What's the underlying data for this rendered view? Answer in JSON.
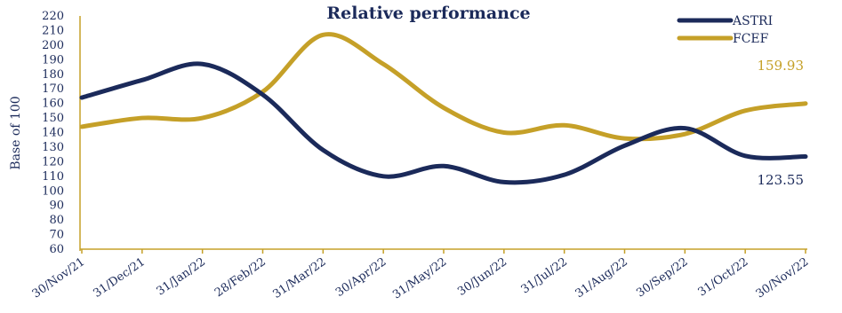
{
  "chart_data": {
    "type": "line",
    "title": "Relative performance",
    "ylabel": "Base of 100",
    "xlabel": "",
    "ylim": [
      60,
      220
    ],
    "yticks": [
      60,
      70,
      80,
      90,
      100,
      110,
      120,
      130,
      140,
      150,
      160,
      170,
      180,
      190,
      200,
      210,
      220
    ],
    "categories": [
      "30/Nov/21",
      "31/Dec/21",
      "31/Jan/22",
      "28/Feb/22",
      "31/Mar/22",
      "30/Apr/22",
      "31/May/22",
      "30/Jun/22",
      "31/Jul/22",
      "31/Aug/22",
      "30/Sep/22",
      "31/Oct/22",
      "30/Nov/22"
    ],
    "legend_position": "top-right",
    "grid": false,
    "series": [
      {
        "name": "ASTRI",
        "color": "#1b2a5a",
        "values": [
          164,
          176,
          187,
          166,
          128,
          110,
          117,
          106,
          111,
          131,
          143,
          124,
          123.55
        ],
        "end_label": "123.55"
      },
      {
        "name": "FCEF",
        "color": "#c5a028",
        "values": [
          144,
          150,
          150,
          168,
          207,
          187,
          157,
          140,
          145,
          136,
          139,
          155,
          159.93
        ],
        "end_label": "159.93"
      }
    ]
  }
}
